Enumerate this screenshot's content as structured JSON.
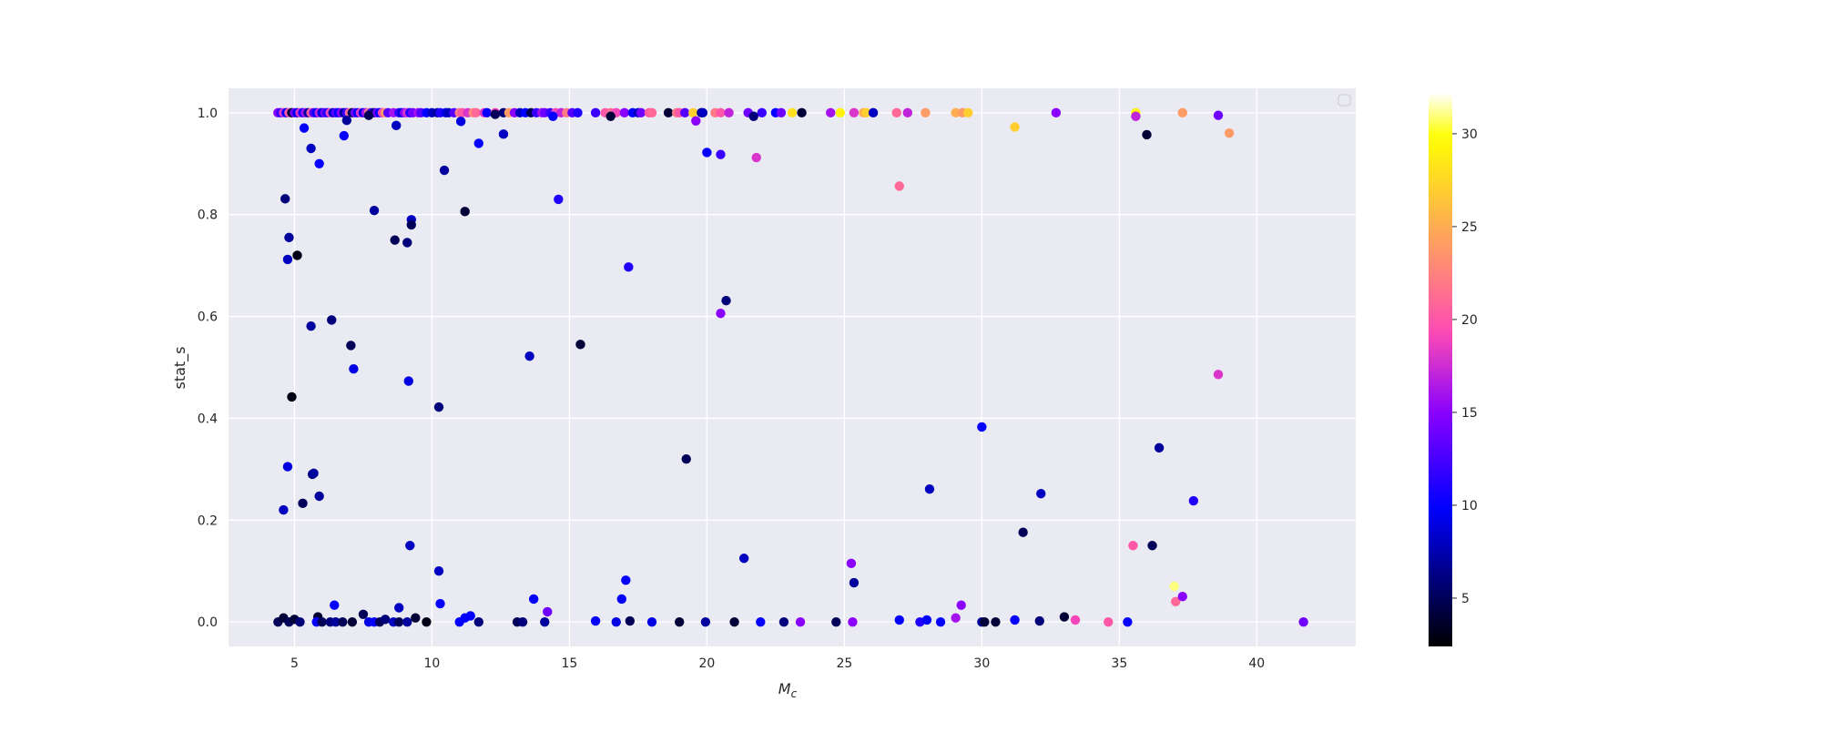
{
  "chart_data": {
    "type": "scatter",
    "title": "",
    "xlabel": "M",
    "xlabel_subscript": "c",
    "ylabel": "stat_s",
    "xlim": [
      2.6,
      43.6
    ],
    "ylim": [
      -0.048,
      1.048
    ],
    "xticks": [
      5,
      10,
      15,
      20,
      25,
      30,
      35,
      40
    ],
    "yticks": [
      "0.0",
      "0.2",
      "0.4",
      "0.6",
      "0.8",
      "1.0"
    ],
    "grid": true,
    "style": "seaborn darkgrid",
    "background_color": "#eaeaf2",
    "legend": {
      "placement": "top-right",
      "entries": []
    },
    "colorbar": {
      "colormap": "gnuplot2",
      "clim": [
        2.4,
        32.2
      ],
      "ticks": [
        5,
        10,
        15,
        20,
        25,
        30
      ]
    },
    "points": [
      [
        4.4,
        1,
        15
      ],
      [
        4.5,
        1,
        12
      ],
      [
        4.6,
        1,
        18
      ],
      [
        4.7,
        1,
        10
      ],
      [
        4.8,
        1,
        20
      ],
      [
        4.9,
        1,
        4
      ],
      [
        5.0,
        1,
        14
      ],
      [
        5.1,
        1,
        9
      ],
      [
        5.2,
        1,
        18
      ],
      [
        5.3,
        1,
        11
      ],
      [
        5.4,
        1,
        16
      ],
      [
        5.5,
        1,
        7
      ],
      [
        5.6,
        1,
        20
      ],
      [
        5.7,
        1,
        13
      ],
      [
        5.8,
        1,
        10
      ],
      [
        5.9,
        1,
        17
      ],
      [
        6.0,
        1,
        9
      ],
      [
        6.1,
        1,
        14
      ],
      [
        6.2,
        1,
        11
      ],
      [
        6.3,
        1,
        19
      ],
      [
        6.4,
        1,
        8
      ],
      [
        6.5,
        1,
        13
      ],
      [
        6.6,
        1,
        10
      ],
      [
        6.7,
        1,
        15
      ],
      [
        6.8,
        1,
        7
      ],
      [
        6.9,
        1,
        12
      ],
      [
        7.0,
        1,
        21
      ],
      [
        7.1,
        1,
        5
      ],
      [
        7.2,
        1,
        14
      ],
      [
        7.3,
        1,
        10
      ],
      [
        7.4,
        1,
        18
      ],
      [
        7.5,
        1,
        9
      ],
      [
        7.6,
        1,
        16
      ],
      [
        7.7,
        1,
        22
      ],
      [
        7.8,
        1,
        12
      ],
      [
        7.9,
        1,
        6
      ],
      [
        8.0,
        1,
        14
      ],
      [
        8.1,
        1,
        10
      ],
      [
        8.2,
        1,
        19
      ],
      [
        8.3,
        1,
        24
      ],
      [
        8.4,
        1,
        13
      ],
      [
        8.6,
        1,
        16
      ],
      [
        8.8,
        1,
        12
      ],
      [
        8.9,
        1,
        9
      ],
      [
        9.0,
        1,
        15
      ],
      [
        9.1,
        1,
        18
      ],
      [
        9.2,
        1,
        11
      ],
      [
        9.3,
        1,
        14
      ],
      [
        9.5,
        1,
        16
      ],
      [
        9.6,
        1,
        13
      ],
      [
        9.8,
        1,
        10
      ],
      [
        10.0,
        1,
        8
      ],
      [
        10.2,
        1,
        7
      ],
      [
        10.3,
        1,
        11
      ],
      [
        10.5,
        1,
        9
      ],
      [
        10.6,
        1,
        8
      ],
      [
        10.8,
        1,
        13
      ],
      [
        11.0,
        1,
        22
      ],
      [
        11.1,
        1,
        20
      ],
      [
        11.3,
        1,
        18
      ],
      [
        11.5,
        1,
        23
      ],
      [
        11.6,
        1,
        21
      ],
      [
        11.9,
        1,
        18
      ],
      [
        12.0,
        1,
        10
      ],
      [
        12.3,
        1,
        19
      ],
      [
        12.6,
        1,
        6
      ],
      [
        12.8,
        1,
        24
      ],
      [
        13.0,
        1,
        15
      ],
      [
        13.2,
        1,
        8
      ],
      [
        13.4,
        1,
        10
      ],
      [
        13.6,
        1,
        5
      ],
      [
        13.8,
        1,
        12
      ],
      [
        14.0,
        1,
        16
      ],
      [
        14.1,
        1,
        14
      ],
      [
        14.3,
        1,
        12
      ],
      [
        14.5,
        1,
        19
      ],
      [
        14.7,
        1,
        17
      ],
      [
        14.9,
        1,
        22
      ],
      [
        15.1,
        1,
        13
      ],
      [
        15.3,
        1,
        11
      ],
      [
        15.95,
        1,
        12
      ],
      [
        16.3,
        1,
        20
      ],
      [
        16.5,
        1,
        21
      ],
      [
        16.7,
        1,
        19
      ],
      [
        17.0,
        1,
        15
      ],
      [
        17.3,
        1,
        10
      ],
      [
        17.5,
        1,
        8
      ],
      [
        17.6,
        1,
        14
      ],
      [
        17.9,
        1,
        20
      ],
      [
        18.0,
        1,
        21
      ],
      [
        18.6,
        1,
        4
      ],
      [
        18.9,
        1,
        22
      ],
      [
        19.0,
        1,
        20
      ],
      [
        19.2,
        1,
        13
      ],
      [
        19.5,
        1,
        27
      ],
      [
        19.8,
        1,
        6
      ],
      [
        19.85,
        1,
        8
      ],
      [
        20.3,
        1,
        22
      ],
      [
        20.5,
        1,
        20
      ],
      [
        20.8,
        1,
        17
      ],
      [
        21.5,
        1,
        14
      ],
      [
        22.0,
        1,
        12
      ],
      [
        22.5,
        1,
        10
      ],
      [
        22.7,
        1,
        14
      ],
      [
        23.1,
        1,
        28
      ],
      [
        23.45,
        1,
        4
      ],
      [
        24.5,
        1,
        16
      ],
      [
        24.85,
        1,
        29
      ],
      [
        25.35,
        1,
        18
      ],
      [
        25.7,
        1,
        25
      ],
      [
        25.8,
        1,
        27
      ],
      [
        26.05,
        1,
        8
      ],
      [
        26.9,
        1,
        21
      ],
      [
        27.3,
        1,
        17
      ],
      [
        27.95,
        1,
        24
      ],
      [
        29.05,
        1,
        25
      ],
      [
        29.3,
        1,
        24
      ],
      [
        29.5,
        1,
        27
      ],
      [
        32.7,
        1,
        15
      ],
      [
        35.6,
        1,
        29
      ],
      [
        37.3,
        1,
        24
      ],
      [
        4.66,
        0.831,
        6
      ],
      [
        4.8,
        0.755,
        7
      ],
      [
        4.75,
        0.712,
        8
      ],
      [
        5.1,
        0.72,
        3
      ],
      [
        5.35,
        0.97,
        10
      ],
      [
        5.6,
        0.93,
        8
      ],
      [
        5.9,
        0.9,
        10
      ],
      [
        6.8,
        0.955,
        10
      ],
      [
        6.9,
        0.985,
        7
      ],
      [
        7.7,
        0.995,
        5
      ],
      [
        8.7,
        0.975,
        8
      ],
      [
        7.9,
        0.808,
        7
      ],
      [
        8.65,
        0.75,
        5
      ],
      [
        9.1,
        0.745,
        6
      ],
      [
        9.25,
        0.79,
        8
      ],
      [
        9.25,
        0.78,
        5
      ],
      [
        10.45,
        0.887,
        7
      ],
      [
        11.2,
        0.806,
        4
      ],
      [
        11.05,
        0.983,
        9
      ],
      [
        11.7,
        0.94,
        10
      ],
      [
        12.6,
        0.958,
        8
      ],
      [
        12.3,
        0.997,
        5
      ],
      [
        14.4,
        0.993,
        10
      ],
      [
        14.6,
        0.83,
        11
      ],
      [
        16.5,
        0.993,
        4
      ],
      [
        17.15,
        0.697,
        11
      ],
      [
        19.6,
        0.984,
        15
      ],
      [
        20.0,
        0.922,
        10
      ],
      [
        20.5,
        0.918,
        12
      ],
      [
        21.8,
        0.912,
        18
      ],
      [
        21.7,
        0.993,
        6
      ],
      [
        20.5,
        0.606,
        15
      ],
      [
        20.7,
        0.631,
        6
      ],
      [
        27.0,
        0.856,
        21
      ],
      [
        31.2,
        0.972,
        27
      ],
      [
        35.6,
        0.993,
        17
      ],
      [
        36.0,
        0.957,
        4
      ],
      [
        39.0,
        0.96,
        24
      ],
      [
        38.6,
        0.995,
        14
      ],
      [
        38.6,
        0.486,
        18
      ],
      [
        5.6,
        0.581,
        7
      ],
      [
        6.35,
        0.593,
        6
      ],
      [
        7.05,
        0.543,
        5
      ],
      [
        7.15,
        0.497,
        9
      ],
      [
        13.55,
        0.522,
        8
      ],
      [
        15.4,
        0.545,
        4
      ],
      [
        9.15,
        0.473,
        9
      ],
      [
        4.9,
        0.442,
        3
      ],
      [
        10.25,
        0.422,
        6
      ],
      [
        4.75,
        0.305,
        9
      ],
      [
        5.65,
        0.29,
        6
      ],
      [
        5.7,
        0.292,
        7
      ],
      [
        5.9,
        0.247,
        7
      ],
      [
        5.3,
        0.233,
        5
      ],
      [
        4.6,
        0.22,
        8
      ],
      [
        19.25,
        0.32,
        5
      ],
      [
        30.0,
        0.383,
        10
      ],
      [
        36.45,
        0.342,
        7
      ],
      [
        28.1,
        0.261,
        8
      ],
      [
        32.15,
        0.252,
        8
      ],
      [
        37.7,
        0.238,
        11
      ],
      [
        31.5,
        0.176,
        5
      ],
      [
        9.2,
        0.15,
        8
      ],
      [
        10.25,
        0.1,
        8
      ],
      [
        21.35,
        0.125,
        8
      ],
      [
        25.25,
        0.115,
        15
      ],
      [
        25.35,
        0.077,
        7
      ],
      [
        35.5,
        0.15,
        20
      ],
      [
        36.2,
        0.15,
        5
      ],
      [
        37.0,
        0.07,
        31
      ],
      [
        37.05,
        0.04,
        21
      ],
      [
        37.3,
        0.05,
        15
      ],
      [
        17.05,
        0.082,
        10
      ],
      [
        16.9,
        0.045,
        10
      ],
      [
        13.7,
        0.045,
        10
      ],
      [
        14.2,
        0.02,
        14
      ],
      [
        10.3,
        0.036,
        10
      ],
      [
        6.45,
        0.033,
        10
      ],
      [
        8.8,
        0.028,
        8
      ],
      [
        7.5,
        0.015,
        5
      ],
      [
        11.4,
        0.012,
        10
      ],
      [
        11.2,
        0.008,
        10
      ],
      [
        29.25,
        0.033,
        15
      ],
      [
        29.05,
        0.008,
        16
      ],
      [
        33.0,
        0.01,
        4
      ],
      [
        4.4,
        0,
        5
      ],
      [
        4.6,
        0.008,
        4
      ],
      [
        4.8,
        0,
        5
      ],
      [
        5.0,
        0.005,
        4
      ],
      [
        5.2,
        0,
        6
      ],
      [
        5.85,
        0.01,
        4
      ],
      [
        5.8,
        0,
        10
      ],
      [
        6.0,
        0,
        5
      ],
      [
        6.3,
        0,
        6
      ],
      [
        6.5,
        0,
        7
      ],
      [
        6.75,
        0,
        5
      ],
      [
        7.1,
        0,
        4
      ],
      [
        7.7,
        0,
        9
      ],
      [
        7.9,
        0,
        10
      ],
      [
        8.1,
        0,
        5
      ],
      [
        8.3,
        0.005,
        6
      ],
      [
        8.6,
        0,
        8
      ],
      [
        8.8,
        0,
        5
      ],
      [
        9.1,
        0,
        7
      ],
      [
        9.4,
        0.008,
        4
      ],
      [
        9.8,
        0,
        3
      ],
      [
        11.0,
        0,
        10
      ],
      [
        11.7,
        0,
        6
      ],
      [
        13.1,
        0,
        5
      ],
      [
        13.3,
        0,
        6
      ],
      [
        14.1,
        0,
        7
      ],
      [
        15.95,
        0.002,
        10
      ],
      [
        16.7,
        0,
        9
      ],
      [
        17.2,
        0.002,
        5
      ],
      [
        18.0,
        0,
        9
      ],
      [
        19.0,
        0,
        4
      ],
      [
        19.95,
        0,
        7
      ],
      [
        21.0,
        0,
        4
      ],
      [
        21.95,
        0,
        10
      ],
      [
        22.8,
        0,
        6
      ],
      [
        23.4,
        0,
        15
      ],
      [
        24.7,
        0,
        5
      ],
      [
        25.3,
        0,
        15
      ],
      [
        27.0,
        0.004,
        10
      ],
      [
        27.75,
        0,
        11
      ],
      [
        28.0,
        0.004,
        10
      ],
      [
        28.5,
        0,
        10
      ],
      [
        30.0,
        0,
        7
      ],
      [
        30.1,
        0,
        4
      ],
      [
        30.5,
        0,
        4
      ],
      [
        31.2,
        0.004,
        10
      ],
      [
        32.1,
        0.002,
        6
      ],
      [
        33.4,
        0.004,
        19
      ],
      [
        34.6,
        0,
        20
      ],
      [
        35.3,
        0,
        10
      ],
      [
        41.7,
        0,
        14
      ]
    ]
  }
}
